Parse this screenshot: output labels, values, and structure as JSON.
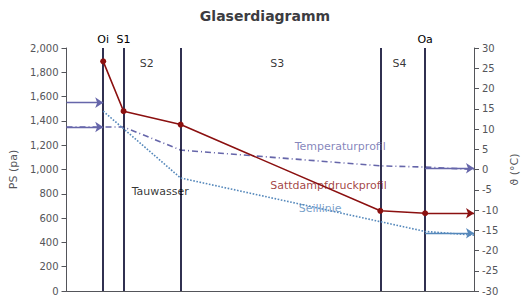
{
  "chart_data": {
    "type": "line",
    "title": "Glaserdiagramm",
    "ylabel": "PS (pa)",
    "y2label": "ϑ (°C)",
    "xlim": [
      0.0,
      1.0
    ],
    "ylim": [
      0,
      2000
    ],
    "yticks": [
      0,
      200,
      400,
      600,
      800,
      1000,
      1200,
      1400,
      1600,
      1800,
      2000
    ],
    "y2lim": [
      -30.0,
      30.0
    ],
    "y2ticks": [
      -30,
      -25,
      -20,
      -15,
      -10,
      -5,
      0,
      5,
      10,
      15,
      20,
      25,
      30
    ],
    "grid": false,
    "tick_labels": "y",
    "series": [
      {
        "type": "line",
        "x": [
          0.0,
          0.09,
          0.14,
          0.28,
          0.77,
          0.88,
          1.0
        ],
        "values": [
          1350,
          1350,
          1350,
          1160,
          1030,
          1020,
          1000
        ],
        "color": "#6666aa",
        "line_style": "dashdot"
      },
      {
        "type": "line",
        "x": [
          0.09,
          0.14,
          0.28,
          0.77,
          0.88
        ],
        "values": [
          1890,
          1480,
          1370,
          660,
          640
        ],
        "color": "#8B1010",
        "line_style": "solid",
        "marker": "o"
      },
      {
        "type": "line",
        "x": [
          0.09,
          0.28,
          0.88,
          1.0
        ],
        "values": [
          1480,
          930,
          490,
          460
        ],
        "color": "#5588bb",
        "line_style": "dotted"
      }
    ],
    "vlines": {
      "x": [
        0.09,
        0.14,
        0.28,
        0.77,
        0.88
      ],
      "labels": [
        "Oi",
        "S1",
        null,
        null,
        "Oa"
      ],
      "color": "#1a1a3e"
    },
    "arrows": [
      {
        "x": [
          0.0,
          0.09
        ],
        "y": 1550,
        "color": "#6666aa"
      },
      {
        "x": [
          0.0,
          0.09
        ],
        "y": 1350,
        "color": "#6666aa"
      },
      {
        "x": [
          0.88,
          1.0
        ],
        "y": 1010,
        "color": "#6666aa"
      },
      {
        "x": [
          0.88,
          1.0
        ],
        "y": 640,
        "color": "#8B1010"
      },
      {
        "x": [
          0.88,
          1.0
        ],
        "y": 475,
        "color": "#5588bb"
      }
    ],
    "annotations": [
      {
        "text": "S2",
        "x": 0.18,
        "y": 1870
      },
      {
        "text": "S3",
        "x": 0.5,
        "y": 1870
      },
      {
        "text": "S4",
        "x": 0.8,
        "y": 1870
      },
      {
        "text": "Tauwasser",
        "x": 0.16,
        "y": 820
      },
      {
        "text": "Temperaturprofil",
        "x": 0.56,
        "y": 1190,
        "color": "#6666aa"
      },
      {
        "text": "Sattdampfdruckprofil",
        "x": 0.5,
        "y": 870,
        "color": "#8B1010"
      },
      {
        "text": "Seillinie",
        "x": 0.57,
        "y": 680,
        "color": "#5588bb"
      }
    ]
  }
}
